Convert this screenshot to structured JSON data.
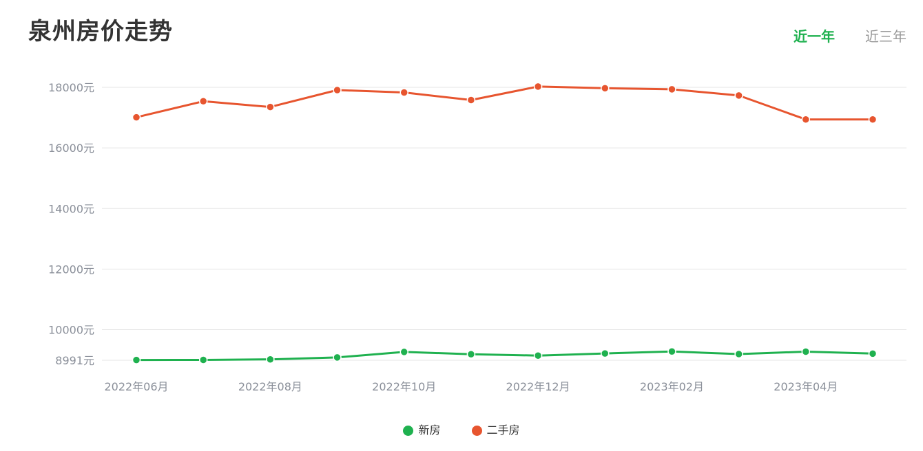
{
  "header": {
    "title": "泉州房价走势"
  },
  "tabs": [
    {
      "label": "近一年",
      "active": true
    },
    {
      "label": "近三年",
      "active": false
    }
  ],
  "colors": {
    "new_house": "#1fb14f",
    "second_hand": "#e7552f",
    "active_tab": "#1fb14f",
    "grid": "#e5e5e5",
    "axis_text": "#8a8f99"
  },
  "chart_data": {
    "type": "line",
    "title": "泉州房价走势",
    "x": [
      "2022年06月",
      "2022年07月",
      "2022年08月",
      "2022年09月",
      "2022年10月",
      "2022年11月",
      "2022年12月",
      "2023年01月",
      "2023年02月",
      "2023年03月",
      "2023年04月",
      "2023年05月"
    ],
    "x_tick_labels": [
      "2022年06月",
      "2022年08月",
      "2022年10月",
      "2022年12月",
      "2023年02月",
      "2023年04月"
    ],
    "y_tick_values": [
      8991,
      10000,
      12000,
      14000,
      16000,
      18000
    ],
    "y_tick_labels": [
      "8991元",
      "10000元",
      "12000元",
      "14000元",
      "16000元",
      "18000元"
    ],
    "ylim": [
      8991,
      18000
    ],
    "grid": true,
    "legend_position": "bottom-center",
    "series": [
      {
        "name": "新房",
        "color": "#1fb14f",
        "values": [
          9000,
          9002,
          9020,
          9085,
          9265,
          9190,
          9145,
          9215,
          9280,
          9195,
          9275,
          9210
        ]
      },
      {
        "name": "二手房",
        "color": "#e7552f",
        "values": [
          17010,
          17540,
          17350,
          17910,
          17830,
          17580,
          18025,
          17970,
          17935,
          17730,
          16940,
          16940
        ]
      }
    ]
  }
}
